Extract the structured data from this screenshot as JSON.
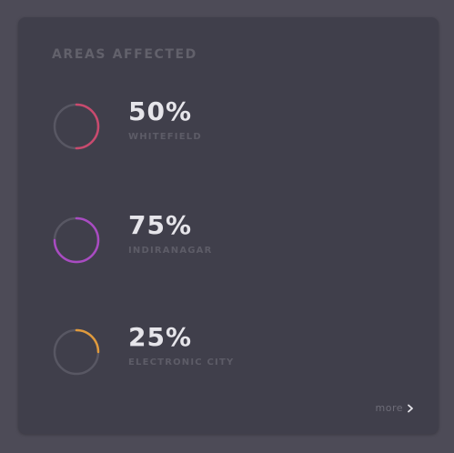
{
  "card": {
    "title": "AREAS AFFECTED",
    "more_label": "more",
    "more_icon": "chevron-right-icon"
  },
  "areas": [
    {
      "percent_label": "50%",
      "value": 0.5,
      "name": "WHITEFIELD",
      "color": "#c94a6e"
    },
    {
      "percent_label": "75%",
      "value": 0.75,
      "name": "INDIRANAGAR",
      "color": "#a94bc2"
    },
    {
      "percent_label": "25%",
      "value": 0.25,
      "name": "ELECTRONIC CITY",
      "color": "#e09a3c"
    }
  ],
  "colors": {
    "ring_track": "#585763",
    "card_background": "#403f4b",
    "page_background": "#4d4b57"
  }
}
